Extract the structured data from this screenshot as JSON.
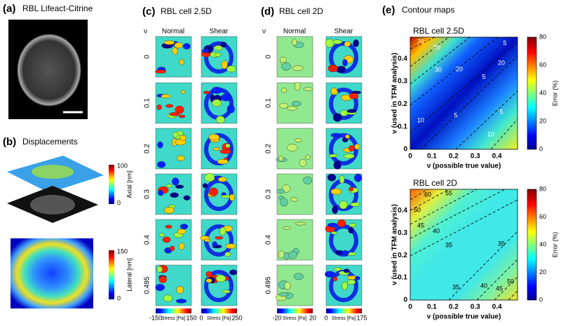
{
  "panel_a": {
    "label": "(a)",
    "title": "RBL Lifeact-Citrine"
  },
  "panel_b": {
    "label": "(b)",
    "title": "Displacements",
    "axial_colorbar": {
      "max": "100",
      "min": "0",
      "label": "Axial [nm]"
    },
    "lateral_colorbar": {
      "max": "150",
      "min": "0",
      "label": "Lateral [nm]"
    }
  },
  "panel_c": {
    "label": "(c)",
    "title": "RBL cell 2.5D",
    "nu_header": "ν",
    "columns": [
      "Normal",
      "Shear"
    ],
    "rows": [
      "0",
      "0.1",
      "0.2",
      "0.3",
      "0.4",
      "0.495"
    ],
    "normal_colorbar": {
      "min": "-150",
      "label": "Stress [Pa]",
      "max": "150"
    },
    "shear_colorbar": {
      "min": "0",
      "label": "Stress [Pa]",
      "max": "250"
    }
  },
  "panel_d": {
    "label": "(d)",
    "title": "RBL cell 2D",
    "nu_header": "ν",
    "columns": [
      "Normal",
      "Shear"
    ],
    "rows": [
      "0",
      "0.1",
      "0.2",
      "0.3",
      "0.4",
      "0.495"
    ],
    "normal_colorbar": {
      "min": "-20",
      "label": "Stress [Pa]",
      "max": "20"
    },
    "shear_colorbar": {
      "min": "0",
      "label": "Stress [Pa]",
      "max": "175"
    }
  },
  "panel_e": {
    "label": "(e)",
    "title": "Contour maps",
    "plots": [
      {
        "title": "RBL cell 2.5D",
        "xlabel": "ν (possible true value)",
        "ylabel": "ν (used in TFM analysis)",
        "xticks": [
          "0",
          "0.1",
          "0.2",
          "0.3",
          "0.4"
        ],
        "yticks": [
          "0",
          "0.1",
          "0.2",
          "0.3",
          "0.4"
        ],
        "colorbar_ticks": [
          "0",
          "20",
          "40",
          "60",
          "80"
        ],
        "colorbar_label": "Error (%)",
        "contour_labels": [
          "70",
          "50",
          "30",
          "20",
          "5",
          "20",
          "5",
          "10",
          "5",
          "10",
          "5"
        ]
      },
      {
        "title": "RBL cell 2D",
        "xlabel": "ν (possible true value)",
        "ylabel": "ν (used in TFM analysis)",
        "xticks": [
          "0",
          "0.1",
          "0.2",
          "0.3",
          "0.4"
        ],
        "yticks": [
          "0",
          "0.1",
          "0.2",
          "0.3",
          "0.4"
        ],
        "colorbar_ticks": [
          "0",
          "20",
          "40",
          "60",
          "80"
        ],
        "colorbar_label": "Error (%)",
        "contour_labels": [
          "60",
          "55",
          "50",
          "45",
          "40",
          "35",
          "35",
          "35",
          "40",
          "45",
          "50"
        ]
      }
    ]
  }
}
